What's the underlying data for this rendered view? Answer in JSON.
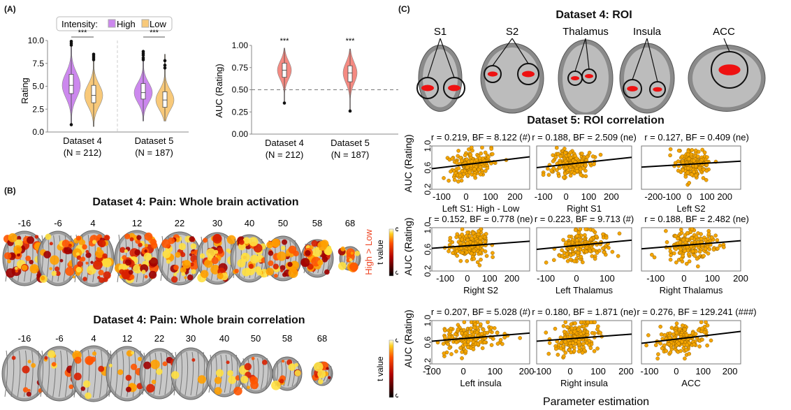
{
  "panels": {
    "A": {
      "label": "(A)"
    },
    "B": {
      "label": "(B)"
    },
    "C": {
      "label": "(C)"
    }
  },
  "colors": {
    "high": "#cc88ee",
    "low": "#f8c97a",
    "auc": "#f58a82",
    "scatter_point": "#f5a500",
    "heat_low": "#3a0000",
    "heat_mid": "#e02000",
    "heat_high": "#ffff60",
    "roi_red": "#ee1111",
    "label_red": "#ee4422"
  },
  "chart_data": [
    {
      "id": "rating-violin",
      "type": "violin",
      "title": "",
      "ylabel": "Rating",
      "xlabel": "",
      "ylim": [
        0,
        10
      ],
      "yticks": [
        "0.0",
        "2.5",
        "5.0",
        "7.5",
        "10.0"
      ],
      "legend": {
        "title": "Intensity:",
        "entries": [
          "High",
          "Low"
        ],
        "placement": "top"
      },
      "categories": [
        "Dataset 4\n(N = 212)",
        "Dataset 5\n(N = 187)"
      ],
      "category_lines": [
        [
          "Dataset 4",
          "(N = 212)"
        ],
        [
          "Dataset 5",
          "(N = 187)"
        ]
      ],
      "significance": [
        "***",
        "***"
      ],
      "series": [
        {
          "name": "High",
          "groups": [
            {
              "min": 0.8,
              "q1": 4.2,
              "median": 5.1,
              "q3": 6.3,
              "max": 9.9,
              "outliers": [
                0.8,
                9.5,
                9.7,
                9.9
              ]
            },
            {
              "min": 1.2,
              "q1": 3.6,
              "median": 4.3,
              "q3": 5.3,
              "max": 8.8,
              "outliers": [
                7.9,
                8.1,
                8.4,
                8.6,
                8.8
              ]
            }
          ]
        },
        {
          "name": "Low",
          "groups": [
            {
              "min": 0.6,
              "q1": 3.2,
              "median": 4.0,
              "q3": 5.1,
              "max": 8.5,
              "outliers": [
                7.9,
                8.1,
                8.3,
                8.5
              ]
            },
            {
              "min": 1.2,
              "q1": 2.7,
              "median": 3.5,
              "q3": 4.4,
              "max": 8.5,
              "outliers": [
                7.0,
                7.3,
                7.8
              ]
            }
          ]
        }
      ]
    },
    {
      "id": "auc-violin",
      "type": "violin",
      "ylabel": "AUC (Rating)",
      "ylim": [
        0,
        1
      ],
      "yticks": [
        "0.00",
        "0.25",
        "0.50",
        "0.75",
        "1.00"
      ],
      "reference_line": 0.5,
      "category_lines": [
        [
          "Dataset 4",
          "(N = 212)"
        ],
        [
          "Dataset 5",
          "(N = 187)"
        ]
      ],
      "significance": [
        "***",
        "***"
      ],
      "series": [
        {
          "name": "AUC",
          "groups": [
            {
              "min": 0.35,
              "q1": 0.64,
              "median": 0.72,
              "q3": 0.8,
              "max": 0.97,
              "outliers": [
                0.35
              ]
            },
            {
              "min": 0.26,
              "q1": 0.59,
              "median": 0.69,
              "q3": 0.77,
              "max": 0.96,
              "outliers": [
                0.26
              ]
            }
          ]
        }
      ]
    },
    {
      "id": "whole-brain-activation",
      "type": "heatmap",
      "title": "Dataset 4: Pain: Whole brain activation",
      "slices": [
        "-16",
        "-6",
        "4",
        "12",
        "22",
        "30",
        "40",
        "50",
        "58",
        "68"
      ],
      "colorbar": {
        "label": "t value",
        "min": "3",
        "max": "8",
        "contrast_label": "High > Low"
      }
    },
    {
      "id": "whole-brain-correlation",
      "type": "heatmap",
      "title": "Dataset 4: Pain: Whole brain correlation",
      "slices": [
        "-16",
        "-6",
        "4",
        "12",
        "22",
        "30",
        "40",
        "50",
        "58",
        "68"
      ],
      "colorbar": {
        "label": "t value",
        "min": "3",
        "max": "5"
      }
    },
    {
      "id": "roi-maps",
      "type": "image",
      "title": "Dataset 4: ROI",
      "rois": [
        "S1",
        "S2",
        "Thalamus",
        "Insula",
        "ACC"
      ]
    },
    {
      "id": "roi-correlation",
      "type": "scatter",
      "title": "Dataset 5: ROI correlation",
      "ylabel": "AUC (Rating)",
      "xlabel": "Parameter estimation",
      "ylim": [
        0.2,
        1.0
      ],
      "yticks": [
        "0.2",
        "0.6",
        "1.0"
      ],
      "subplots": [
        {
          "name": "Left S1: High - Low",
          "stat": "r = 0.219, BF = 8.122 (#)",
          "r": 0.219,
          "xlim": [
            -140,
            260
          ],
          "xticks": [
            -100,
            0,
            100,
            200
          ],
          "line": [
            0.58,
            0.8
          ]
        },
        {
          "name": "Right S1",
          "stat": "r = 0.188, BF = 2.509 (ne)",
          "r": 0.188,
          "xlim": [
            -130,
            290
          ],
          "xticks": [
            -100,
            0,
            100,
            200
          ],
          "line": [
            0.6,
            0.79
          ]
        },
        {
          "name": "Left S2",
          "stat": "r = 0.127, BF = 0.409 (ne)",
          "r": 0.127,
          "xlim": [
            -270,
            290
          ],
          "xticks": [
            -200,
            -100,
            0,
            100,
            200
          ],
          "tick_labels": [
            "-200-100",
            "0",
            "100",
            "200"
          ],
          "line": [
            0.61,
            0.72
          ]
        },
        {
          "name": "Right S2",
          "stat": "r = 0.152, BF = 0.778 (ne)",
          "r": 0.152,
          "xlim": [
            -160,
            280
          ],
          "xticks": [
            -100,
            0,
            100,
            200
          ],
          "line": [
            0.62,
            0.75
          ]
        },
        {
          "name": "Left Thalamus",
          "stat": "r = 0.223, BF = 9.713 (#)",
          "r": 0.223,
          "xlim": [
            -130,
            180
          ],
          "xticks": [
            -100,
            0,
            100
          ],
          "line": [
            0.6,
            0.77
          ]
        },
        {
          "name": "Right Thalamus",
          "stat": "r = 0.188, BF = 2.482 (ne)",
          "r": 0.188,
          "xlim": [
            -150,
            200
          ],
          "xticks": [
            -100,
            0,
            100,
            200
          ],
          "line": [
            0.61,
            0.76
          ]
        },
        {
          "name": "Left insula",
          "stat": "r = 0.207, BF = 5.028 (#)",
          "r": 0.207,
          "xlim": [
            -100,
            210
          ],
          "xticks": [
            -100,
            0,
            100,
            200
          ],
          "line": [
            0.62,
            0.77
          ]
        },
        {
          "name": "Right insula",
          "stat": "r = 0.180, BF = 1.871 (ne)",
          "r": 0.18,
          "xlim": [
            -120,
            220
          ],
          "xticks": [
            -100,
            0,
            100,
            200
          ],
          "line": [
            0.62,
            0.75
          ]
        },
        {
          "name": "ACC",
          "stat": "r = 0.276, BF = 129.241 (###)",
          "r": 0.276,
          "xlim": [
            -130,
            240
          ],
          "xticks": [
            -100,
            0,
            100,
            200
          ],
          "line": [
            0.58,
            0.8
          ]
        }
      ]
    }
  ]
}
